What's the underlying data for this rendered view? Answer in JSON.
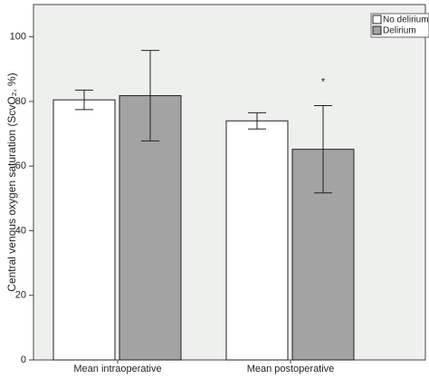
{
  "chart_data": {
    "type": "bar",
    "ylabel": "Central venous oxygen saturation (ScvO₂, %)",
    "categories": [
      "Mean intraoperative",
      "Mean postoperative"
    ],
    "series": [
      {
        "name": "No delirium",
        "color": "#ffffff",
        "values": [
          80.5,
          74
        ],
        "errors": [
          3,
          2.5
        ]
      },
      {
        "name": "Delirium",
        "color": "#a3a3a3",
        "values": [
          81.8,
          65.2
        ],
        "errors": [
          14,
          13.5
        ]
      }
    ],
    "annotations": [
      {
        "text": "*",
        "category": 1,
        "series": 1
      }
    ],
    "ylim": [
      0,
      110
    ],
    "yticks": [
      0,
      20,
      40,
      60,
      80,
      100
    ],
    "grid": false,
    "legend": "top-right"
  }
}
